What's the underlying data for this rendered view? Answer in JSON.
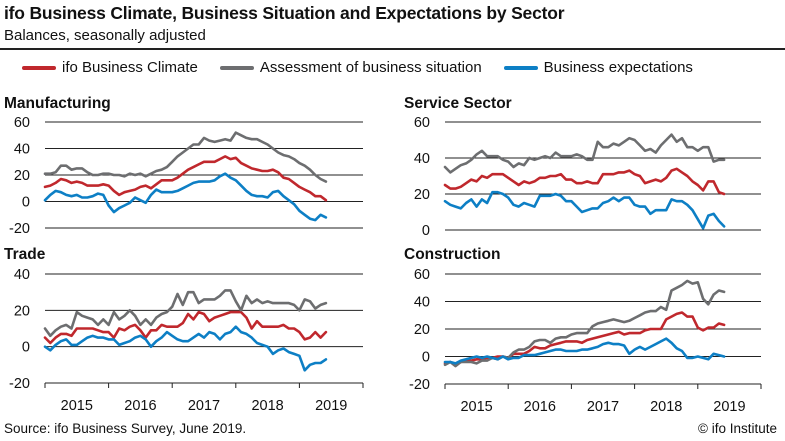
{
  "header": {
    "title": "ifo Business Climate, Business Situation and Expectations by Sector",
    "subtitle": "Balances, seasonally adjusted"
  },
  "legend": [
    {
      "label": "ifo Business Climate",
      "color": "#c0282d"
    },
    {
      "label": "Assessment of business situation",
      "color": "#6d6e70"
    },
    {
      "label": "Business expectations",
      "color": "#0d7fc5"
    }
  ],
  "footer": {
    "source": "Source: ifo Business Survey, June 2019.",
    "copyright": "© ifo Institute"
  },
  "chart_data": [
    {
      "type": "line",
      "title": "Manufacturing",
      "x_start": "2015-01",
      "x_end": "2019-06",
      "frequency": "monthly",
      "x_tick_labels": [
        "2015",
        "2016",
        "2017",
        "2018",
        "2019"
      ],
      "ylim": [
        -20,
        60
      ],
      "y_ticks": [
        60,
        40,
        20,
        0,
        -20
      ],
      "grid": true,
      "series": [
        {
          "name": "ifo Business Climate",
          "values": [
            11,
            12,
            14,
            17,
            16,
            14,
            15,
            14,
            12,
            12,
            12,
            13,
            12,
            8,
            5,
            7,
            8,
            9,
            11,
            12,
            10,
            13,
            16,
            16,
            16,
            18,
            21,
            24,
            26,
            28,
            30,
            30,
            30,
            32,
            34,
            32,
            33,
            29,
            27,
            25,
            24,
            23,
            23,
            24,
            22,
            18,
            17,
            14,
            11,
            9,
            7,
            4,
            4,
            1
          ]
        },
        {
          "name": "Assessment of business situation",
          "values": [
            21,
            21,
            22,
            27,
            27,
            24,
            25,
            25,
            22,
            20,
            20,
            21,
            21,
            20,
            20,
            19,
            21,
            20,
            21,
            19,
            21,
            23,
            24,
            26,
            30,
            34,
            37,
            40,
            43,
            43,
            48,
            46,
            45,
            46,
            47,
            46,
            52,
            50,
            48,
            47,
            47,
            45,
            43,
            40,
            37,
            35,
            34,
            32,
            29,
            27,
            24,
            20,
            17,
            15
          ]
        },
        {
          "name": "Business expectations",
          "values": [
            1,
            5,
            8,
            7,
            5,
            4,
            5,
            3,
            3,
            4,
            6,
            5,
            -3,
            -8,
            -5,
            -3,
            -1,
            3,
            1,
            -1,
            5,
            9,
            7,
            7,
            7,
            8,
            10,
            12,
            14,
            15,
            15,
            15,
            16,
            19,
            21,
            18,
            16,
            12,
            8,
            5,
            4,
            4,
            3,
            7,
            8,
            4,
            1,
            -2,
            -7,
            -10,
            -13,
            -14,
            -10,
            -12
          ]
        }
      ]
    },
    {
      "type": "line",
      "title": "Service Sector",
      "x_start": "2015-01",
      "x_end": "2019-06",
      "frequency": "monthly",
      "x_tick_labels": [],
      "ylim": [
        0,
        60
      ],
      "y_ticks": [
        60,
        40,
        20,
        0
      ],
      "grid": true,
      "series": [
        {
          "name": "ifo Business Climate",
          "values": [
            25,
            23,
            23,
            24,
            26,
            28,
            27,
            30,
            29,
            31,
            31,
            31,
            29,
            27,
            25,
            27,
            26,
            27,
            29,
            29,
            30,
            30,
            31,
            28,
            28,
            26,
            26,
            27,
            26,
            26,
            31,
            31,
            31,
            32,
            32,
            33,
            31,
            30,
            26,
            27,
            28,
            27,
            29,
            33,
            34,
            32,
            30,
            27,
            25,
            22,
            27,
            27,
            21,
            20
          ]
        },
        {
          "name": "Assessment of business situation",
          "values": [
            35,
            32,
            34,
            36,
            37,
            39,
            42,
            44,
            41,
            41,
            41,
            39,
            38,
            35,
            37,
            36,
            40,
            39,
            40,
            41,
            40,
            43,
            41,
            41,
            41,
            42,
            41,
            39,
            39,
            49,
            46,
            46,
            48,
            47,
            49,
            51,
            50,
            47,
            44,
            45,
            43,
            47,
            50,
            53,
            49,
            51,
            46,
            46,
            44,
            46,
            46,
            38,
            39,
            39
          ]
        },
        {
          "name": "Business expectations",
          "values": [
            16,
            14,
            13,
            12,
            15,
            17,
            13,
            17,
            15,
            21,
            21,
            20,
            18,
            14,
            13,
            15,
            14,
            13,
            19,
            19,
            19,
            20,
            19,
            16,
            16,
            13,
            10,
            11,
            12,
            12,
            15,
            16,
            18,
            16,
            18,
            18,
            14,
            13,
            13,
            9,
            11,
            11,
            11,
            17,
            16,
            16,
            14,
            11,
            6,
            1,
            8,
            9,
            5,
            2
          ]
        }
      ]
    },
    {
      "type": "line",
      "title": "Trade",
      "x_start": "2015-01",
      "x_end": "2019-06",
      "frequency": "monthly",
      "x_tick_labels": [
        "2015",
        "2016",
        "2017",
        "2018",
        "2019"
      ],
      "ylim": [
        -20,
        40
      ],
      "y_ticks": [
        40,
        20,
        0,
        -20
      ],
      "grid": true,
      "series": [
        {
          "name": "ifo Business Climate",
          "values": [
            5,
            2,
            5,
            7,
            7,
            6,
            10,
            10,
            10,
            10,
            9,
            8,
            8,
            5,
            10,
            9,
            11,
            12,
            9,
            5,
            9,
            9,
            12,
            11,
            11,
            11,
            13,
            18,
            15,
            19,
            18,
            14,
            16,
            17,
            18,
            19,
            19,
            19,
            16,
            10,
            14,
            11,
            11,
            11,
            11,
            12,
            10,
            10,
            8,
            4,
            5,
            8,
            5,
            8
          ]
        },
        {
          "name": "Assessment of business situation",
          "values": [
            10,
            6,
            9,
            11,
            12,
            10,
            19,
            17,
            16,
            15,
            12,
            15,
            12,
            19,
            15,
            17,
            20,
            17,
            12,
            15,
            12,
            16,
            18,
            19,
            22,
            29,
            23,
            30,
            30,
            24,
            26,
            26,
            26,
            28,
            31,
            31,
            25,
            20,
            28,
            24,
            26,
            24,
            25,
            24,
            24,
            24,
            24,
            23,
            20,
            26,
            25,
            21,
            23,
            24
          ]
        },
        {
          "name": "Business expectations",
          "values": [
            0,
            -2,
            1,
            3,
            4,
            1,
            1,
            3,
            5,
            6,
            5,
            5,
            4,
            4,
            1,
            2,
            3,
            5,
            6,
            4,
            0,
            3,
            5,
            8,
            6,
            4,
            3,
            3,
            5,
            7,
            5,
            8,
            7,
            4,
            7,
            8,
            11,
            8,
            7,
            5,
            2,
            1,
            0,
            -4,
            -2,
            -1,
            -3,
            -4,
            -5,
            -13,
            -10,
            -9,
            -9,
            -7
          ]
        }
      ]
    },
    {
      "type": "line",
      "title": "Construction",
      "x_start": "2015-01",
      "x_end": "2019-06",
      "frequency": "monthly",
      "x_tick_labels": [
        "2015",
        "2016",
        "2017",
        "2018",
        "2019"
      ],
      "ylim": [
        -20,
        60
      ],
      "y_ticks": [
        60,
        40,
        20,
        0,
        -20
      ],
      "grid": true,
      "series": [
        {
          "name": "ifo Business Climate",
          "values": [
            -5,
            -4,
            -6,
            -4,
            -3,
            -3,
            -2,
            -2,
            -1,
            -1,
            0,
            0,
            -1,
            2,
            2,
            2,
            4,
            7,
            6,
            6,
            8,
            9,
            10,
            11,
            11,
            11,
            10,
            12,
            13,
            14,
            15,
            16,
            17,
            18,
            16,
            17,
            17,
            17,
            19,
            20,
            20,
            20,
            27,
            29,
            31,
            32,
            29,
            29,
            21,
            19,
            21,
            21,
            24,
            23
          ]
        },
        {
          "name": "Assessment of business situation",
          "values": [
            -6,
            -4,
            -7,
            -4,
            -4,
            -4,
            -5,
            -3,
            -3,
            -1,
            -2,
            0,
            -1,
            3,
            5,
            5,
            7,
            11,
            12,
            12,
            10,
            13,
            14,
            14,
            16,
            17,
            17,
            17,
            22,
            24,
            25,
            26,
            27,
            26,
            25,
            26,
            28,
            30,
            32,
            33,
            33,
            36,
            34,
            48,
            50,
            52,
            55,
            53,
            54,
            42,
            38,
            45,
            48,
            47
          ]
        },
        {
          "name": "Business expectations",
          "values": [
            -4,
            -4,
            -5,
            -3,
            -2,
            -1,
            0,
            -1,
            0,
            -1,
            -2,
            0,
            -2,
            -1,
            -1,
            1,
            1,
            1,
            2,
            3,
            4,
            5,
            5,
            4,
            4,
            4,
            5,
            5,
            6,
            7,
            9,
            10,
            9,
            9,
            8,
            2,
            5,
            7,
            5,
            7,
            9,
            11,
            13,
            10,
            6,
            4,
            -1,
            -1,
            0,
            -1,
            -2,
            2,
            1,
            0
          ]
        }
      ]
    }
  ]
}
